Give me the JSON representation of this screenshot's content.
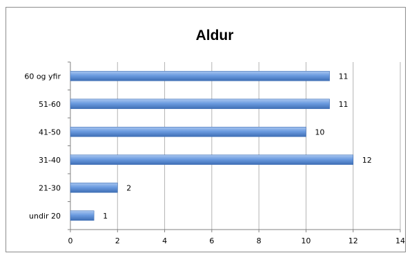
{
  "chart_data": {
    "type": "bar",
    "orientation": "horizontal",
    "title": "Aldur",
    "xlabel": "",
    "ylabel": "",
    "categories": [
      "undir 20",
      "21-30",
      "31-40",
      "41-50",
      "51-60",
      "60 og yfir"
    ],
    "values": [
      1,
      2,
      12,
      10,
      11,
      11
    ],
    "xlim": [
      0,
      14
    ],
    "xticks": [
      "0",
      "2",
      "4",
      "6",
      "8",
      "10",
      "12",
      "14"
    ],
    "data_labels": [
      "1",
      "2",
      "12",
      "10",
      "11",
      "11"
    ],
    "grid": true,
    "legend": "none",
    "colors": {
      "bar": "#5b8fd6",
      "bar_light": "#a9c6ef",
      "bar_dark": "#3f6fb5",
      "grid": "#b3b3b3",
      "axis": "#808080"
    }
  }
}
